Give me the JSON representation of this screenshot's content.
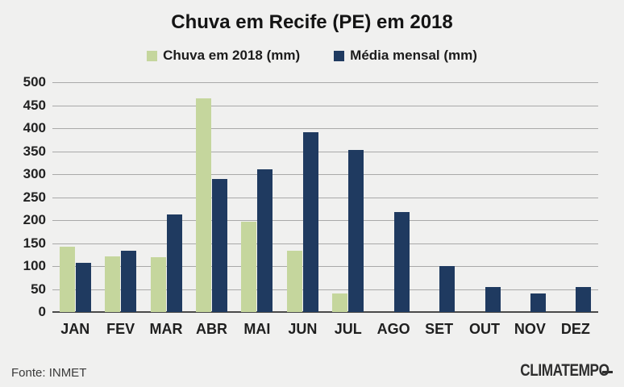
{
  "chart_data": {
    "type": "bar",
    "title": "Chuva em Recife (PE) em 2018",
    "categories": [
      "JAN",
      "FEV",
      "MAR",
      "ABR",
      "MAI",
      "JUN",
      "JUL",
      "AGO",
      "SET",
      "OUT",
      "NOV",
      "DEZ"
    ],
    "series": [
      {
        "name": "Chuva em 2018 (mm)",
        "color": "#c5d69d",
        "values": [
          142,
          121,
          120,
          465,
          197,
          133,
          40,
          0,
          0,
          0,
          0,
          0
        ]
      },
      {
        "name": "Média mensal (mm)",
        "color": "#1f3a60",
        "values": [
          107,
          133,
          212,
          290,
          310,
          392,
          353,
          217,
          100,
          55,
          40,
          55
        ]
      }
    ],
    "ylim": [
      0,
      500
    ],
    "ytick_step": 50,
    "grid": true,
    "legend_position": "top",
    "background_color": "#f0f0ef",
    "gridline_color": "#a9a9a9"
  },
  "footer": {
    "source": "Fonte: INMET",
    "brand": "CLIMATEMPO"
  }
}
